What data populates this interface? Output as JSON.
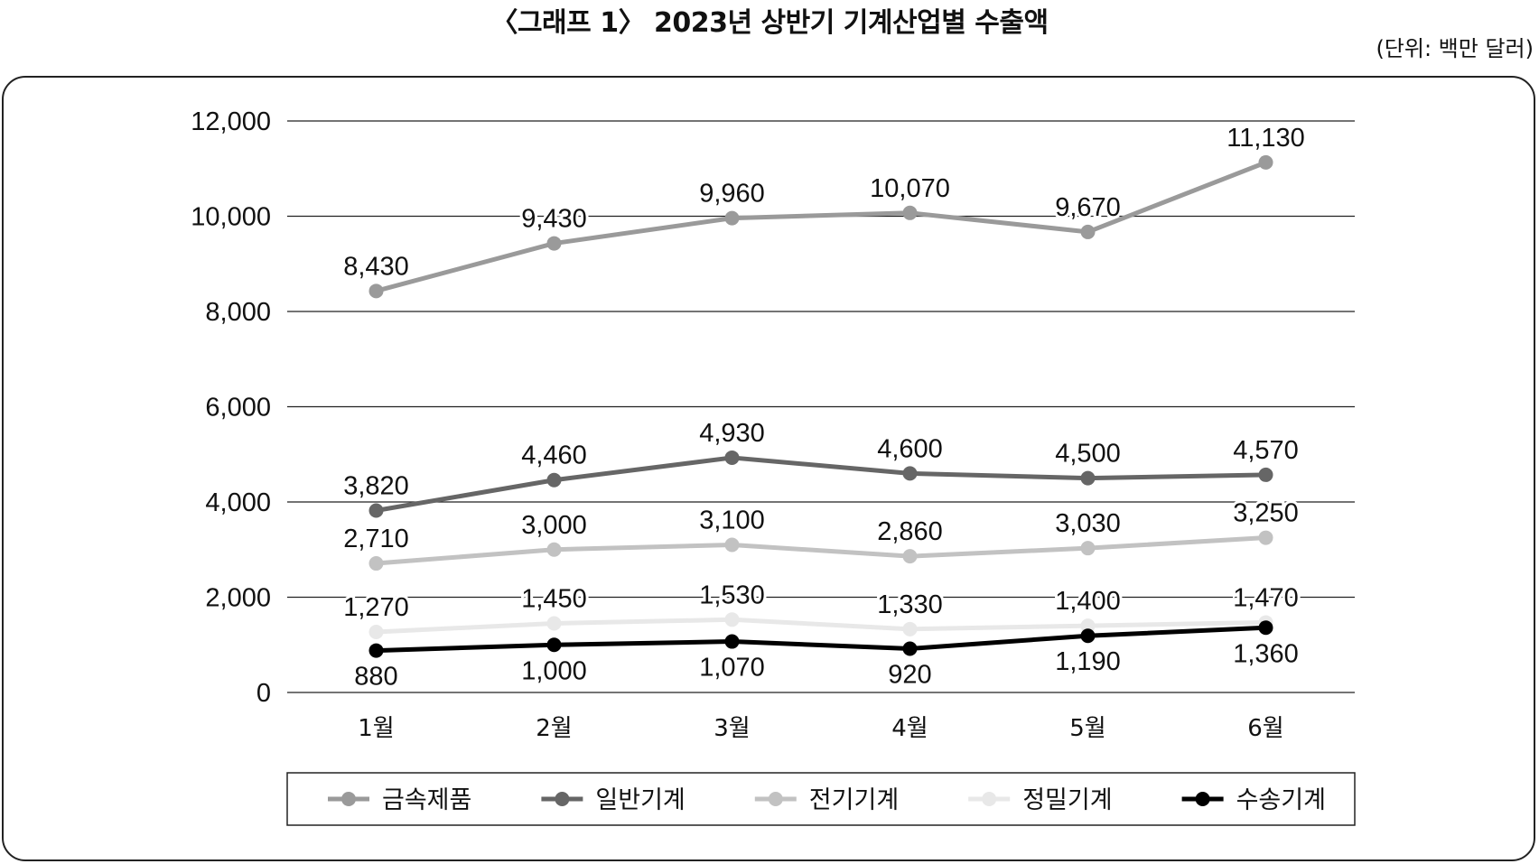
{
  "title": "〈그래프 1〉 2023년 상반기 기계산업별 수출액",
  "unit_note": "(단위: 백만 달러)",
  "chart_data": {
    "type": "line",
    "title": "〈그래프 1〉 2023년 상반기 기계산업별 수출액",
    "xlabel": "",
    "ylabel": "",
    "categories": [
      "1월",
      "2월",
      "3월",
      "4월",
      "5월",
      "6월"
    ],
    "ylim": [
      0,
      12000
    ],
    "yticks": [
      0,
      2000,
      4000,
      6000,
      8000,
      10000,
      12000
    ],
    "ytick_labels": [
      "0",
      "2,000",
      "4,000",
      "6,000",
      "8,000",
      "10,000",
      "12,000"
    ],
    "grid": "horizontal",
    "legend_position": "bottom",
    "series": [
      {
        "name": "금속제품",
        "color": "#9a9a9a",
        "values": [
          8430,
          9430,
          9960,
          10070,
          9670,
          11130
        ],
        "labels": [
          "8,430",
          "9,430",
          "9,960",
          "10,070",
          "9,670",
          "11,130"
        ],
        "label_pos": "above"
      },
      {
        "name": "일반기계",
        "color": "#666666",
        "values": [
          3820,
          4460,
          4930,
          4600,
          4500,
          4570
        ],
        "labels": [
          "3,820",
          "4,460",
          "4,930",
          "4,600",
          "4,500",
          "4,570"
        ],
        "label_pos": "above"
      },
      {
        "name": "전기기계",
        "color": "#c2c2c2",
        "values": [
          2710,
          3000,
          3100,
          2860,
          3030,
          3250
        ],
        "labels": [
          "2,710",
          "3,000",
          "3,100",
          "2,860",
          "3,030",
          "3,250"
        ],
        "label_pos": "above"
      },
      {
        "name": "정밀기계",
        "color": "#e8e8e8",
        "values": [
          1270,
          1450,
          1530,
          1330,
          1400,
          1470
        ],
        "labels": [
          "1,270",
          "1,450",
          "1,530",
          "1,330",
          "1,400",
          "1,470"
        ],
        "label_pos": "above"
      },
      {
        "name": "수송기계",
        "color": "#000000",
        "values": [
          880,
          1000,
          1070,
          920,
          1190,
          1360
        ],
        "labels": [
          "880",
          "1,000",
          "1,070",
          "920",
          "1,190",
          "1,360"
        ],
        "label_pos": "below"
      }
    ]
  }
}
